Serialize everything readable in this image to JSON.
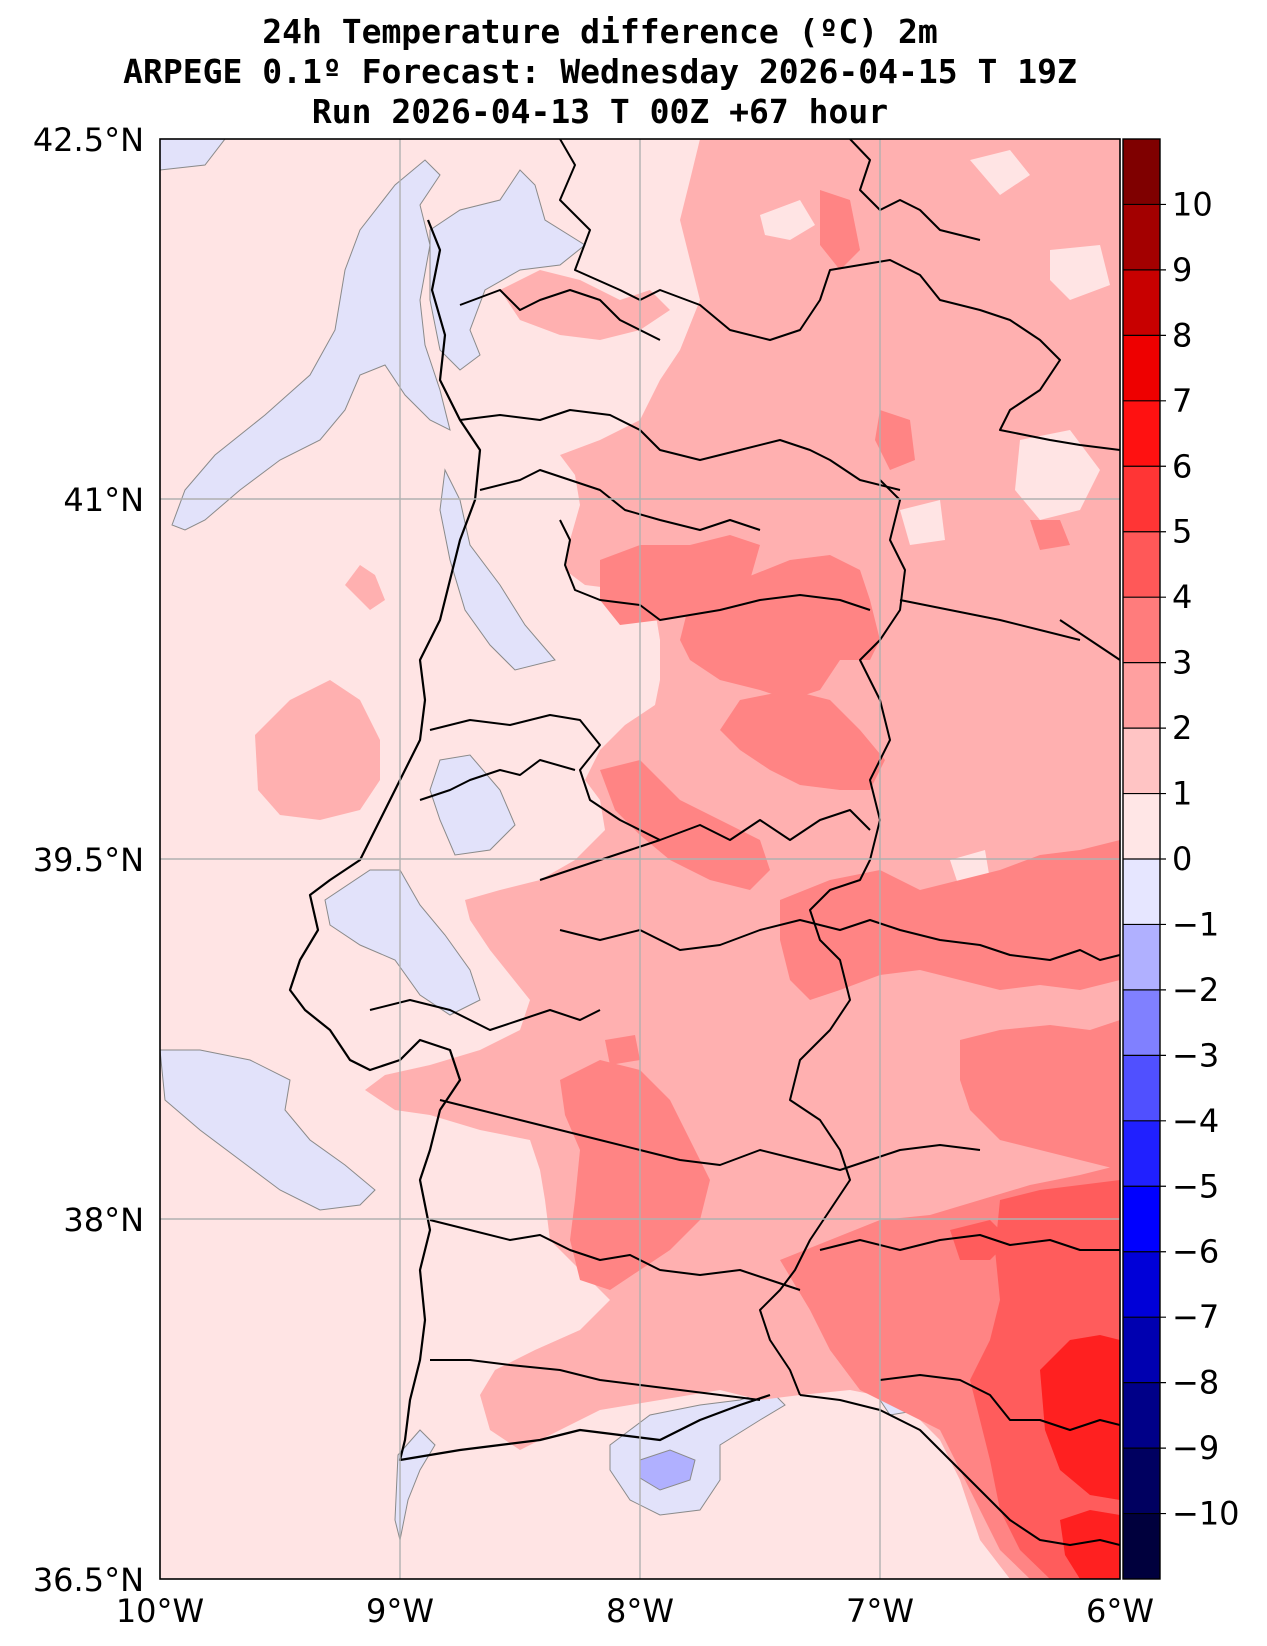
{
  "title": {
    "line1": "24h Temperature difference (ºC) 2m",
    "line2": "ARPEGE 0.1º Forecast: Wednesday 2026-04-15 T 19Z",
    "line3": "Run 2026-04-13 T 00Z +67 hour"
  },
  "axes": {
    "lat_ticks": [
      "42.5°N",
      "41°N",
      "39.5°N",
      "38°N",
      "36.5°N"
    ],
    "lon_ticks": [
      "10°W",
      "9°W",
      "8°W",
      "7°W",
      "6°W"
    ],
    "lat_range": [
      36.5,
      42.5
    ],
    "lon_range": [
      -10,
      -6
    ],
    "grid": true
  },
  "colorbar": {
    "levels": [
      -11,
      -10,
      -9,
      -8,
      -7,
      -6,
      -5,
      -4,
      -3,
      -2,
      -1,
      0,
      1,
      2,
      3,
      4,
      5,
      6,
      7,
      8,
      9,
      10,
      11
    ],
    "tick_labels": [
      "10",
      "9",
      "8",
      "7",
      "6",
      "5",
      "4",
      "3",
      "2",
      "1",
      "0",
      "−1",
      "−2",
      "−3",
      "−4",
      "−5",
      "−6",
      "−7",
      "−8",
      "−9",
      "−10"
    ],
    "colors_top_to_bottom": [
      "#7f0000",
      "#a30000",
      "#c80000",
      "#ee0000",
      "#ff1111",
      "#ff3535",
      "#ff5858",
      "#ff7c7c",
      "#ffa0a0",
      "#ffc4c4",
      "#ffe6e6",
      "#e6e6ff",
      "#b0b0ff",
      "#8080ff",
      "#5050ff",
      "#2020ff",
      "#0000ff",
      "#0000d8",
      "#0000b0",
      "#000088",
      "#000060",
      "#00003d"
    ]
  },
  "colors": {
    "base_warm": "#ffe4e4",
    "cool": "#e2e2fa",
    "cool_strong": "#b0b0ff",
    "warm_1_2": "#ffb0b0",
    "warm_2_3": "#ff8484",
    "warm_3_4": "#ff5c5c",
    "warm_4_5": "#ff2020",
    "coast": "#000000",
    "grid": "#b0b0b0"
  }
}
